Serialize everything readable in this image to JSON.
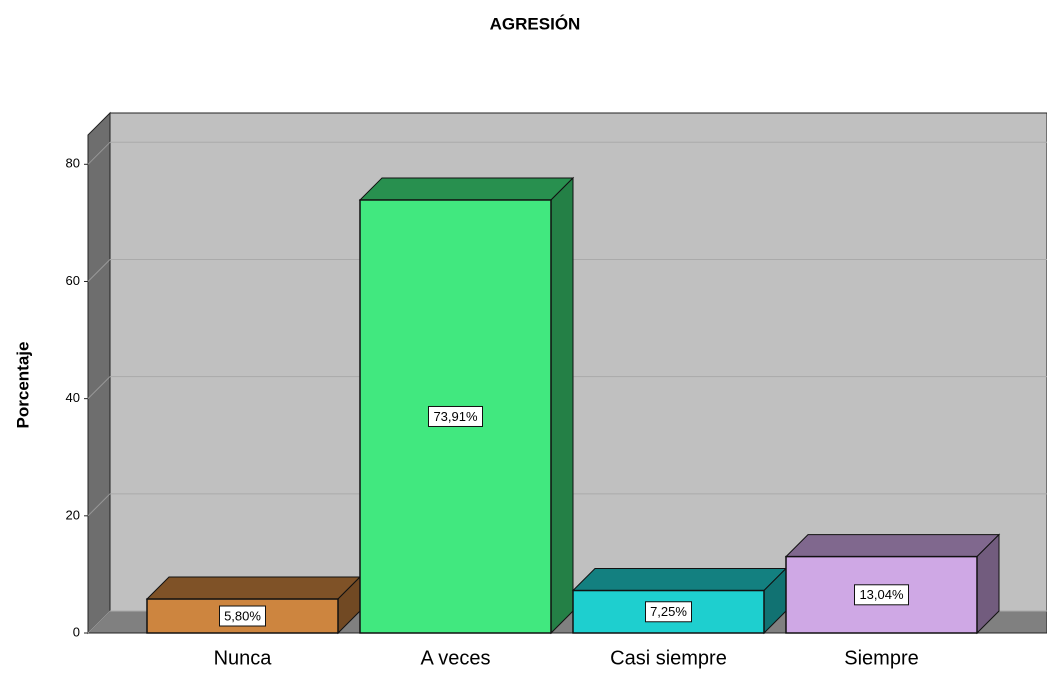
{
  "chart_data": {
    "type": "bar3d",
    "title": "AGRESIÓN",
    "y_label": "Porcentaje",
    "categories": [
      "Nunca",
      "A veces",
      "Casi siempre",
      "Siempre"
    ],
    "values": [
      5.8,
      73.91,
      7.25,
      13.04
    ],
    "value_labels": [
      "5,80%",
      "73,91%",
      "7,25%",
      "13,04%"
    ],
    "colors": [
      "#cd853f",
      "#41e87f",
      "#1ecfcf",
      "#cfa8e5"
    ],
    "ylim": [
      0,
      85
    ],
    "yticks": [
      0,
      20,
      40,
      60,
      80
    ],
    "grid": true
  }
}
